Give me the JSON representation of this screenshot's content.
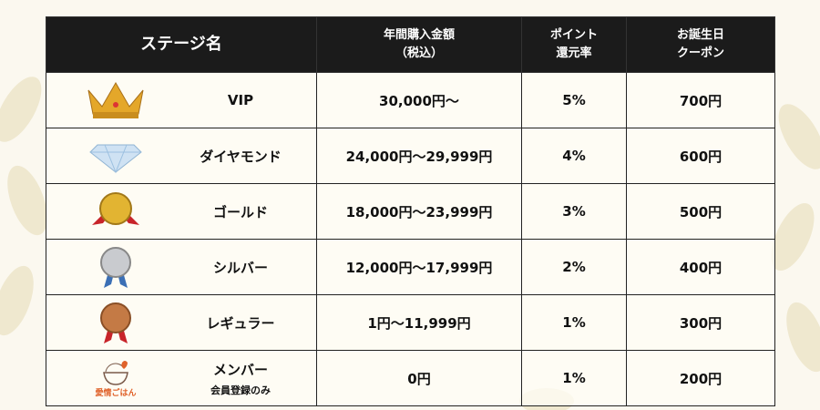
{
  "header": {
    "stage": "ステージ名",
    "purchase": [
      "年間購入金額",
      "（税込）"
    ],
    "points": [
      "ポイント",
      "還元率"
    ],
    "coupon": [
      "お誕生日",
      "クーポン"
    ]
  },
  "rows": [
    {
      "icon": "crown-icon",
      "name": "VIP",
      "purchase": "30,000円～",
      "points": "5%",
      "coupon": "700円"
    },
    {
      "icon": "diamond-icon",
      "name": "ダイヤモンド",
      "purchase": "24,000円～29,999円",
      "points": "4%",
      "coupon": "600円"
    },
    {
      "icon": "gold-medal-icon",
      "name": "ゴールド",
      "purchase": "18,000円～23,999円",
      "points": "3%",
      "coupon": "500円"
    },
    {
      "icon": "silver-medal-icon",
      "name": "シルバー",
      "purchase": "12,000円～17,999円",
      "points": "2%",
      "coupon": "400円"
    },
    {
      "icon": "bronze-medal-icon",
      "name": "レギュラー",
      "purchase": "1円～11,999円",
      "points": "1%",
      "coupon": "300円"
    },
    {
      "icon": "aijou-gohan-logo",
      "name": "メンバー",
      "sub": "会員登録のみ",
      "logo_text": "愛情ごはん",
      "purchase": "0円",
      "points": "1%",
      "coupon": "200円"
    }
  ],
  "colors": {
    "header_bg": "#1b1b1b",
    "background": "#fbf8ef",
    "logo": "#e0622a"
  }
}
